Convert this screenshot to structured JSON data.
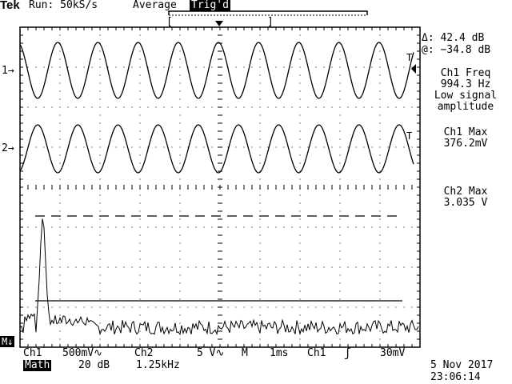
{
  "header": {
    "brand": "Tek",
    "run_status": "Run: 50kS/s",
    "acq_mode": "Average",
    "trig_state": "Trig'd"
  },
  "markers": {
    "ch1": "1",
    "ch2": "2",
    "math": "M"
  },
  "readouts": {
    "cursor_delta": "Δ: 42.4 dB",
    "cursor_at": "@: −34.8 dB",
    "ch1_freq_title": "Ch1 Freq",
    "ch1_freq_value": "994.3 Hz",
    "ch1_freq_note1": "Low signal",
    "ch1_freq_note2": "amplitude",
    "ch1_max_title": "Ch1 Max",
    "ch1_max_value": "376.2mV",
    "ch2_max_title": "Ch2 Max",
    "ch2_max_value": "3.035 V"
  },
  "status_bar": {
    "ch1_label": "Ch1",
    "ch1_scale": "500mV",
    "ch2_label": "Ch2",
    "ch2_scale": "5 V",
    "mode": "M",
    "timebase": "1ms",
    "trig_src": "Ch1",
    "trig_level": "30mV",
    "math_label": "Math",
    "math_scale": "20 dB",
    "math_span": "1.25kHz",
    "date": "5 Nov 2017",
    "time": "23:06:14"
  },
  "colors": {
    "trace": "#000000",
    "background": "#ffffff"
  }
}
